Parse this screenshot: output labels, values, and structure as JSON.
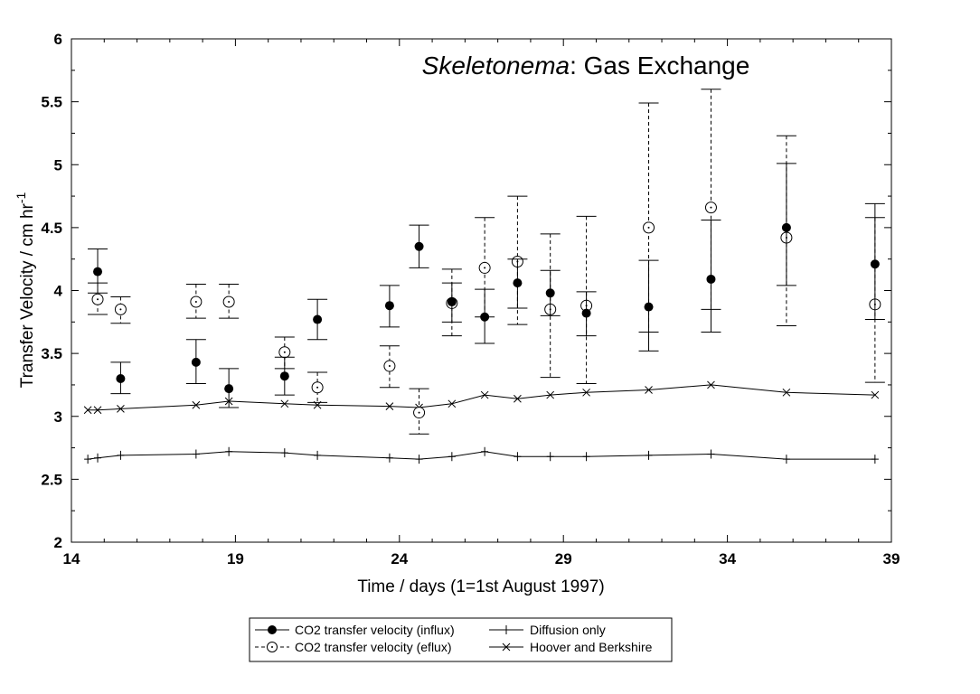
{
  "chart_data": {
    "type": "scatter",
    "title": {
      "italic_part": "Skeletonema",
      "rest": ": Gas Exchange"
    },
    "xlabel": "Time / days (1=1st August 1997)",
    "ylabel": {
      "main": "Transfer Velocity / cm hr",
      "superscript": "-1"
    },
    "xlim": [
      14,
      39
    ],
    "ylim": [
      2,
      6
    ],
    "xticks": [
      "14",
      "19",
      "24",
      "29",
      "34",
      "39"
    ],
    "yticks": [
      "2",
      "2.5",
      "3",
      "3.5",
      "4",
      "4.5",
      "5",
      "5.5",
      "6"
    ],
    "xtick_values": [
      14,
      19,
      24,
      29,
      34,
      39
    ],
    "ytick_values": [
      2,
      2.5,
      3,
      3.5,
      4,
      4.5,
      5,
      5.5,
      6
    ],
    "grid": false,
    "legend_position": "bottom-center",
    "series": [
      {
        "name": "CO2 transfer velocity (influx)",
        "marker": "filled-circle",
        "error_line": "solid",
        "color": "#000000",
        "points": [
          {
            "x": 14.8,
            "y": 4.15,
            "lo": 3.98,
            "hi": 4.33
          },
          {
            "x": 15.5,
            "y": 3.3,
            "lo": 3.18,
            "hi": 3.43
          },
          {
            "x": 17.8,
            "y": 3.43,
            "lo": 3.26,
            "hi": 3.61
          },
          {
            "x": 18.8,
            "y": 3.22,
            "lo": 3.07,
            "hi": 3.38
          },
          {
            "x": 20.5,
            "y": 3.32,
            "lo": 3.17,
            "hi": 3.47
          },
          {
            "x": 21.5,
            "y": 3.77,
            "lo": 3.61,
            "hi": 3.93
          },
          {
            "x": 23.7,
            "y": 3.88,
            "lo": 3.71,
            "hi": 4.04
          },
          {
            "x": 24.6,
            "y": 4.35,
            "lo": 4.18,
            "hi": 4.52
          },
          {
            "x": 25.6,
            "y": 3.91,
            "lo": 3.75,
            "hi": 4.06
          },
          {
            "x": 26.6,
            "y": 3.79,
            "lo": 3.58,
            "hi": 4.01
          },
          {
            "x": 27.6,
            "y": 4.06,
            "lo": 3.86,
            "hi": 4.25
          },
          {
            "x": 28.6,
            "y": 3.98,
            "lo": 3.8,
            "hi": 4.16
          },
          {
            "x": 29.7,
            "y": 3.82,
            "lo": 3.64,
            "hi": 3.99
          },
          {
            "x": 31.6,
            "y": 3.87,
            "lo": 3.52,
            "hi": 4.24
          },
          {
            "x": 33.5,
            "y": 4.09,
            "lo": 3.67,
            "hi": 4.56
          },
          {
            "x": 35.8,
            "y": 4.5,
            "lo": 4.04,
            "hi": 5.01
          },
          {
            "x": 38.5,
            "y": 4.21,
            "lo": 3.77,
            "hi": 4.69
          }
        ]
      },
      {
        "name": "CO2 transfer velocity (eflux)",
        "marker": "open-circle-dot",
        "error_line": "dashed",
        "color": "#000000",
        "points": [
          {
            "x": 14.8,
            "y": 3.93,
            "lo": 3.81,
            "hi": 4.06
          },
          {
            "x": 15.5,
            "y": 3.85,
            "lo": 3.74,
            "hi": 3.95
          },
          {
            "x": 17.8,
            "y": 3.91,
            "lo": 3.78,
            "hi": 4.05
          },
          {
            "x": 18.8,
            "y": 3.91,
            "lo": 3.78,
            "hi": 4.05
          },
          {
            "x": 20.5,
            "y": 3.51,
            "lo": 3.38,
            "hi": 3.63
          },
          {
            "x": 21.5,
            "y": 3.23,
            "lo": 3.11,
            "hi": 3.35
          },
          {
            "x": 23.7,
            "y": 3.4,
            "lo": 3.23,
            "hi": 3.56
          },
          {
            "x": 24.6,
            "y": 3.03,
            "lo": 2.86,
            "hi": 3.22
          },
          {
            "x": 25.6,
            "y": 3.9,
            "lo": 3.64,
            "hi": 4.17
          },
          {
            "x": 26.6,
            "y": 4.18,
            "lo": 3.79,
            "hi": 4.58
          },
          {
            "x": 27.6,
            "y": 4.23,
            "lo": 3.73,
            "hi": 4.75
          },
          {
            "x": 28.6,
            "y": 3.85,
            "lo": 3.31,
            "hi": 4.45
          },
          {
            "x": 29.7,
            "y": 3.88,
            "lo": 3.26,
            "hi": 4.59
          },
          {
            "x": 31.6,
            "y": 4.5,
            "lo": 3.67,
            "hi": 5.49
          },
          {
            "x": 33.5,
            "y": 4.66,
            "lo": 3.85,
            "hi": 5.6
          },
          {
            "x": 35.8,
            "y": 4.42,
            "lo": 3.72,
            "hi": 5.23
          },
          {
            "x": 38.5,
            "y": 3.89,
            "lo": 3.27,
            "hi": 4.58
          }
        ]
      },
      {
        "name": "Diffusion only",
        "marker": "plus",
        "line": "solid",
        "color": "#000000",
        "x": [
          14.5,
          14.8,
          15.5,
          17.8,
          18.8,
          20.5,
          21.5,
          23.7,
          24.6,
          25.6,
          26.6,
          27.6,
          28.6,
          29.7,
          31.6,
          33.5,
          35.8,
          38.5
        ],
        "y": [
          2.66,
          2.67,
          2.69,
          2.7,
          2.72,
          2.71,
          2.69,
          2.67,
          2.66,
          2.68,
          2.72,
          2.68,
          2.68,
          2.68,
          2.69,
          2.7,
          2.66,
          2.66
        ]
      },
      {
        "name": "Hoover and Berkshire",
        "marker": "x",
        "line": "solid",
        "color": "#000000",
        "x": [
          14.5,
          14.8,
          15.5,
          17.8,
          18.8,
          20.5,
          21.5,
          23.7,
          24.6,
          25.6,
          26.6,
          27.6,
          28.6,
          29.7,
          31.6,
          33.5,
          35.8,
          38.5
        ],
        "y": [
          3.05,
          3.05,
          3.06,
          3.09,
          3.12,
          3.1,
          3.09,
          3.08,
          3.07,
          3.1,
          3.17,
          3.14,
          3.17,
          3.19,
          3.21,
          3.25,
          3.19,
          3.17
        ]
      }
    ]
  }
}
